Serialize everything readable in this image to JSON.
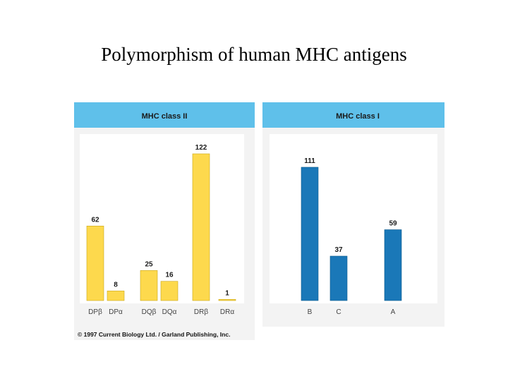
{
  "slide": {
    "title": "Polymorphism of human MHC antigens",
    "copyright": "© 1997 Current Biology Ltd. / Garland Publishing, Inc."
  },
  "colors": {
    "header": "#5fc0ea",
    "class_ii_bar": "#fdd94d",
    "class_i_bar": "#1a78b8",
    "panel_bg": "#f3f3f3",
    "plot_bg": "#ffffff"
  },
  "chart_data": [
    {
      "type": "bar",
      "title": "MHC class II",
      "categories": [
        "DPβ",
        "DPα",
        "DQβ",
        "DQα",
        "DRβ",
        "DRα"
      ],
      "values": [
        62,
        8,
        25,
        16,
        122,
        1
      ],
      "ylim": [
        0,
        122
      ],
      "xlabel": "",
      "ylabel": "",
      "grid": false
    },
    {
      "type": "bar",
      "title": "MHC class I",
      "categories": [
        "B",
        "C",
        "A"
      ],
      "values": [
        111,
        37,
        59
      ],
      "ylim": [
        0,
        111
      ],
      "xlabel": "",
      "ylabel": "",
      "grid": false
    }
  ]
}
